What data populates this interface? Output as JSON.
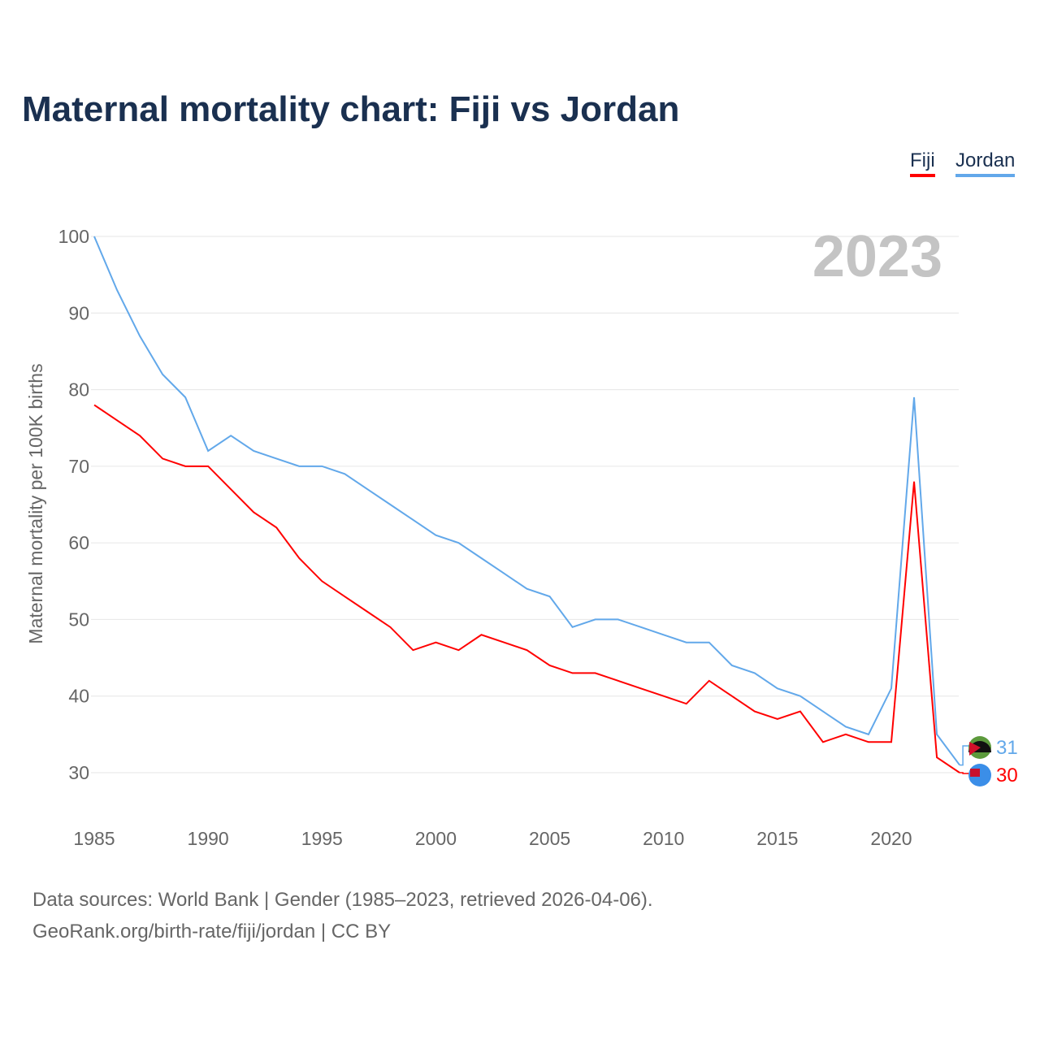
{
  "chart_data": {
    "type": "line",
    "title": "Maternal mortality chart: Fiji vs Jordan",
    "ylabel": "Maternal mortality per 100K births",
    "xlabel": "",
    "year_label": "2023",
    "xlim": [
      1985,
      2023
    ],
    "ylim": [
      25,
      100
    ],
    "xticks": [
      "1985",
      "1990",
      "1995",
      "2000",
      "2005",
      "2010",
      "2015",
      "2020"
    ],
    "yticks": [
      "30",
      "40",
      "50",
      "60",
      "70",
      "80",
      "90",
      "100"
    ],
    "grid": true,
    "legend_position": "top-right",
    "x": [
      1985,
      1986,
      1987,
      1988,
      1989,
      1990,
      1991,
      1992,
      1993,
      1994,
      1995,
      1996,
      1997,
      1998,
      1999,
      2000,
      2001,
      2002,
      2003,
      2004,
      2005,
      2006,
      2007,
      2008,
      2009,
      2010,
      2011,
      2012,
      2013,
      2014,
      2015,
      2016,
      2017,
      2018,
      2019,
      2020,
      2021,
      2022,
      2023
    ],
    "series": [
      {
        "name": "Fiji",
        "color": "#ff0000",
        "end_label": "30",
        "values": [
          78,
          76,
          74,
          71,
          70,
          70,
          67,
          64,
          62,
          58,
          55,
          53,
          51,
          49,
          46,
          47,
          46,
          48,
          47,
          46,
          44,
          43,
          43,
          42,
          41,
          40,
          39,
          42,
          40,
          38,
          37,
          38,
          34,
          35,
          34,
          34,
          68,
          32,
          30
        ]
      },
      {
        "name": "Jordan",
        "color": "#62a8ea",
        "end_label": "31",
        "values": [
          100,
          93,
          87,
          82,
          79,
          72,
          74,
          72,
          71,
          70,
          70,
          69,
          67,
          65,
          63,
          61,
          60,
          58,
          56,
          54,
          53,
          49,
          50,
          50,
          49,
          48,
          47,
          47,
          44,
          43,
          41,
          40,
          38,
          36,
          35,
          41,
          79,
          35,
          31
        ]
      }
    ]
  },
  "footer": {
    "line1": "Data sources: World Bank | Gender (1985–2023, retrieved 2026-04-06).",
    "line2": "GeoRank.org/birth-rate/fiji/jordan | CC BY"
  }
}
